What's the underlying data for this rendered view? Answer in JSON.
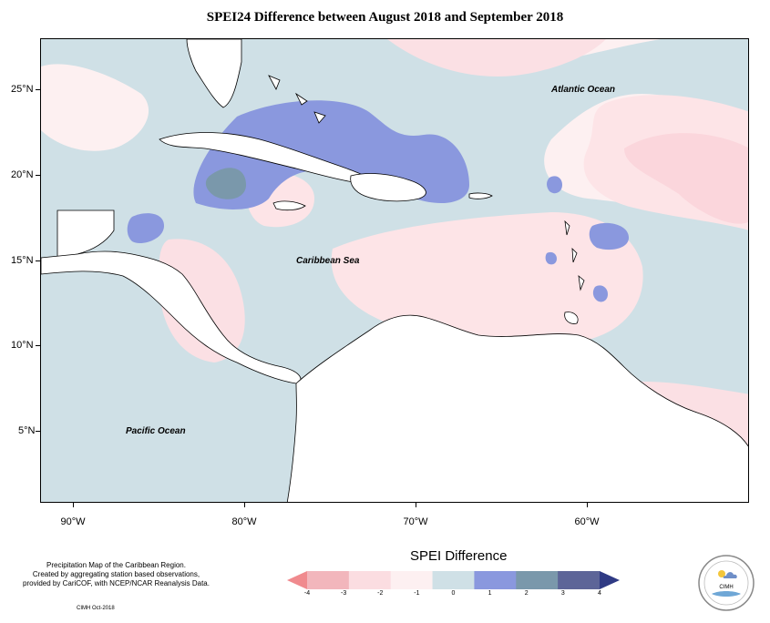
{
  "title": "SPEI24 Difference between August 2018 and September 2018",
  "labels": {
    "atlantic": "Atlantic Ocean",
    "caribbean": "Caribbean Sea",
    "pacific": "Pacific Ocean"
  },
  "latitudes": [
    "25°N",
    "20°N",
    "15°N",
    "10°N",
    "5°N"
  ],
  "longitudes": [
    "90°W",
    "80°W",
    "70°W",
    "60°W"
  ],
  "legend": {
    "title": "SPEI Difference",
    "ticks": [
      "-4",
      "-3",
      "-2",
      "-1",
      "0",
      "1",
      "2",
      "3",
      "4"
    ],
    "colors": [
      "#f08a8e",
      "#f2b6bc",
      "#fbdde1",
      "#fdf0f1",
      "#cfe0e6",
      "#8a98de",
      "#7a98ab",
      "#5d6598",
      "#2f3a84"
    ]
  },
  "credits": {
    "line1": "Precipitation Map of the Caribbean Region.",
    "line2": "Created by aggregating station based observations,",
    "line3": "provided by CariCOF, with NCEP/NCAR Reanalysis Data.",
    "made_by": "CIMH Oct-2018"
  },
  "logo": {
    "text": "CIMH"
  }
}
